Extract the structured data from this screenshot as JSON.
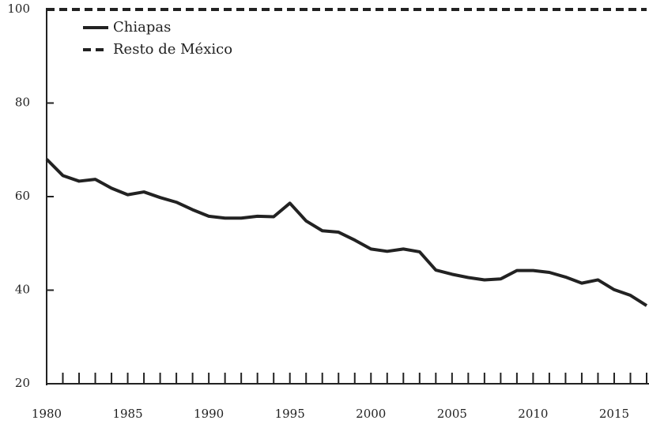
{
  "chart_data": {
    "type": "line",
    "x": [
      1980,
      1981,
      1982,
      1983,
      1984,
      1985,
      1986,
      1987,
      1988,
      1989,
      1990,
      1991,
      1992,
      1993,
      1994,
      1995,
      1996,
      1997,
      1998,
      1999,
      2000,
      2001,
      2002,
      2003,
      2004,
      2005,
      2006,
      2007,
      2008,
      2009,
      2010,
      2011,
      2012,
      2013,
      2014,
      2015,
      2016,
      2017
    ],
    "series": [
      {
        "name": "Chiapas",
        "color": "#222222",
        "linestyle": "solid",
        "values": [
          68,
          64.5,
          63.3,
          63.7,
          61.8,
          60.4,
          61,
          59.8,
          58.8,
          57.2,
          55.8,
          55.4,
          55.4,
          55.8,
          55.7,
          58.6,
          54.8,
          52.7,
          52.4,
          50.7,
          48.8,
          48.3,
          48.8,
          48.2,
          44.3,
          43.4,
          42.7,
          42.2,
          42.4,
          44.2,
          44.2,
          43.8,
          42.8,
          41.5,
          42.2,
          40.1,
          38.9,
          36.7
        ]
      },
      {
        "name": "Resto de México",
        "color": "#222222",
        "linestyle": "dashed",
        "values": [
          100,
          100,
          100,
          100,
          100,
          100,
          100,
          100,
          100,
          100,
          100,
          100,
          100,
          100,
          100,
          100,
          100,
          100,
          100,
          100,
          100,
          100,
          100,
          100,
          100,
          100,
          100,
          100,
          100,
          100,
          100,
          100,
          100,
          100,
          100,
          100,
          100,
          100
        ]
      }
    ],
    "xlim": [
      1980,
      2017
    ],
    "xticks": [
      1980,
      1985,
      1990,
      1995,
      2000,
      2005,
      2010,
      2015
    ],
    "xminorticks": [
      1981,
      1982,
      1983,
      1984,
      1986,
      1987,
      1988,
      1989,
      1991,
      1992,
      1993,
      1994,
      1996,
      1997,
      1998,
      1999,
      2001,
      2002,
      2003,
      2004,
      2006,
      2007,
      2008,
      2009,
      2011,
      2012,
      2013,
      2014,
      2016,
      2017
    ],
    "ylim": [
      20,
      100
    ],
    "yticks": [
      20,
      40,
      60,
      80,
      100
    ],
    "legend": "upper left"
  }
}
